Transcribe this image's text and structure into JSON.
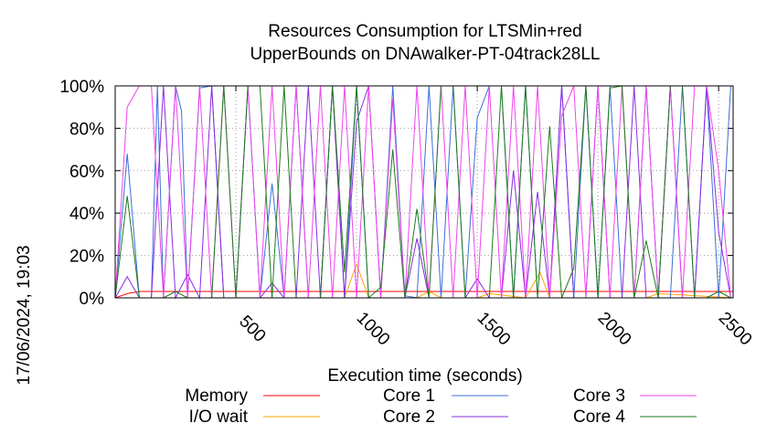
{
  "chart_data": {
    "type": "line",
    "title": [
      "Resources Consumption for LTSMin+red",
      "UpperBounds on DNAwalker-PT-04track28LL"
    ],
    "xlabel": "Execution time (seconds)",
    "ylabel": "",
    "xlim": [
      0,
      2560
    ],
    "ylim": [
      0,
      100
    ],
    "x_ticks": [
      500,
      1000,
      1500,
      2000,
      2500
    ],
    "y_ticks": [
      0,
      20,
      40,
      60,
      80,
      100
    ],
    "y_tick_labels": [
      "0%",
      "20%",
      "40%",
      "60%",
      "80%",
      "100%"
    ],
    "grid": true,
    "legend_position": "bottom",
    "timestamp": "17/06/2024, 19:03",
    "series": [
      {
        "name": "Memory",
        "color": "#ff0000",
        "x": [
          0,
          50,
          100,
          150,
          200,
          250,
          300,
          400,
          500,
          600,
          700,
          800,
          900,
          1000,
          1100,
          1200,
          1300,
          1400,
          1500,
          1600,
          1700,
          1800,
          1900,
          2000,
          2100,
          2200,
          2300,
          2400,
          2500,
          2560
        ],
        "values": [
          0,
          2,
          3,
          3,
          3,
          3,
          3,
          3,
          3,
          3,
          3,
          3,
          3,
          3,
          3,
          3,
          3,
          3,
          3,
          3,
          3,
          3,
          3,
          3,
          3,
          3,
          3,
          3,
          3,
          3
        ]
      },
      {
        "name": "I/O wait",
        "color": "#ffa500",
        "x": [
          0,
          950,
          1000,
          1050,
          1250,
          1300,
          1350,
          1500,
          1550,
          1700,
          1760,
          1800,
          1850,
          2200,
          2250,
          2560
        ],
        "values": [
          0,
          0,
          16,
          0,
          0,
          3,
          0,
          0,
          2,
          0,
          12,
          0,
          0,
          0,
          2,
          0
        ]
      },
      {
        "name": "Core 1",
        "color": "#3a6fd8",
        "x": [
          0,
          50,
          100,
          150,
          175,
          200,
          250,
          275,
          300,
          350,
          400,
          450,
          500,
          550,
          600,
          650,
          700,
          750,
          800,
          850,
          900,
          950,
          1000,
          1050,
          1100,
          1150,
          1200,
          1250,
          1300,
          1350,
          1400,
          1450,
          1500,
          1550,
          1600,
          1650,
          1700,
          1750,
          1800,
          1850,
          1900,
          1950,
          2000,
          2050,
          2100,
          2150,
          2200,
          2250,
          2300,
          2350,
          2400,
          2450,
          2500,
          2550
        ],
        "values": [
          0,
          68,
          0,
          0,
          100,
          0,
          100,
          88,
          0,
          99,
          100,
          0,
          0,
          100,
          0,
          54,
          0,
          100,
          0,
          0,
          100,
          0,
          100,
          0,
          0,
          100,
          1,
          0,
          100,
          0,
          100,
          0,
          85,
          100,
          100,
          0,
          100,
          0,
          0,
          100,
          0,
          100,
          0,
          100,
          0,
          0,
          100,
          0,
          0,
          100,
          0,
          100,
          0,
          100
        ]
      },
      {
        "name": "Core 2",
        "color": "#8a2be2",
        "x": [
          0,
          50,
          100,
          150,
          200,
          250,
          300,
          350,
          400,
          450,
          500,
          550,
          600,
          650,
          700,
          750,
          800,
          850,
          900,
          950,
          1000,
          1050,
          1100,
          1150,
          1200,
          1250,
          1300,
          1350,
          1400,
          1450,
          1500,
          1550,
          1600,
          1650,
          1700,
          1750,
          1800,
          1850,
          1900,
          1950,
          2000,
          2050,
          2100,
          2150,
          2200,
          2250,
          2300,
          2350,
          2400,
          2450,
          2500,
          2550
        ],
        "values": [
          0,
          10,
          0,
          0,
          100,
          0,
          11,
          0,
          100,
          0,
          0,
          0,
          0,
          7,
          0,
          0,
          100,
          0,
          100,
          0,
          83,
          100,
          0,
          0,
          0,
          28,
          0,
          0,
          0,
          0,
          9,
          0,
          0,
          60,
          0,
          50,
          0,
          100,
          0,
          0,
          100,
          0,
          0,
          100,
          0,
          0,
          100,
          0,
          0,
          100,
          31,
          0
        ]
      },
      {
        "name": "Core 3",
        "color": "#ee44ee",
        "x": [
          0,
          50,
          100,
          150,
          200,
          250,
          300,
          350,
          400,
          450,
          500,
          550,
          600,
          650,
          700,
          750,
          800,
          850,
          900,
          950,
          1000,
          1050,
          1100,
          1150,
          1200,
          1250,
          1300,
          1350,
          1400,
          1450,
          1500,
          1550,
          1600,
          1650,
          1700,
          1750,
          1800,
          1850,
          1900,
          1950,
          2000,
          2050,
          2100,
          2150,
          2200,
          2250,
          2300,
          2350,
          2400,
          2450,
          2500,
          2550
        ],
        "values": [
          0,
          90,
          100,
          100,
          0,
          100,
          0,
          100,
          0,
          100,
          0,
          100,
          0,
          100,
          0,
          100,
          0,
          100,
          0,
          100,
          0,
          100,
          0,
          94,
          0,
          100,
          0,
          100,
          0,
          100,
          0,
          100,
          0,
          100,
          0,
          100,
          0,
          86,
          100,
          0,
          100,
          0,
          100,
          0,
          100,
          0,
          100,
          0,
          100,
          100,
          60,
          0
        ]
      },
      {
        "name": "Core 4",
        "color": "#1e7b1e",
        "x": [
          0,
          50,
          100,
          150,
          200,
          250,
          300,
          350,
          400,
          450,
          500,
          550,
          600,
          650,
          700,
          750,
          800,
          850,
          900,
          950,
          1000,
          1050,
          1100,
          1150,
          1200,
          1250,
          1300,
          1350,
          1400,
          1450,
          1500,
          1550,
          1600,
          1650,
          1700,
          1750,
          1800,
          1850,
          1900,
          1950,
          2000,
          2050,
          2100,
          2150,
          2200,
          2250,
          2300,
          2350,
          2400,
          2450,
          2500,
          2550
        ],
        "values": [
          0,
          48,
          0,
          0,
          0,
          3,
          0,
          0,
          0,
          100,
          0,
          100,
          100,
          0,
          100,
          0,
          0,
          0,
          100,
          12,
          100,
          0,
          5,
          70,
          0,
          42,
          0,
          100,
          100,
          0,
          0,
          0,
          100,
          0,
          100,
          0,
          81,
          0,
          14,
          100,
          0,
          99,
          100,
          0,
          27,
          0,
          100,
          100,
          0,
          0,
          3,
          0
        ]
      }
    ]
  }
}
